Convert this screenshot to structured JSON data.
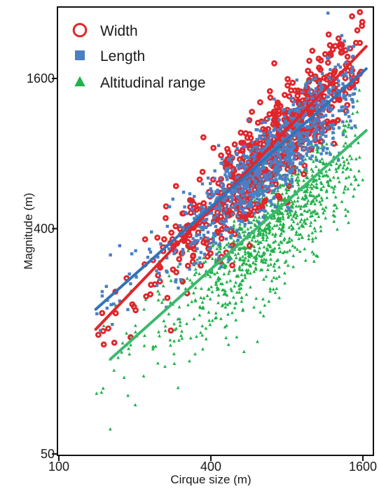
{
  "chart_data": {
    "type": "scatter",
    "xlabel": "Cirque size (m)",
    "ylabel": "Magnitude (m)",
    "x_scale": "log",
    "y_scale": "log",
    "xlim": [
      100,
      1700
    ],
    "ylim": [
      50,
      2650
    ],
    "x_ticks": [
      {
        "value": 100,
        "label": "100"
      },
      {
        "value": 400,
        "label": "400"
      },
      {
        "value": 1600,
        "label": "1600"
      }
    ],
    "y_ticks": [
      {
        "value": 50,
        "label": "50"
      },
      {
        "value": 400,
        "label": "400"
      },
      {
        "value": 1600,
        "label": "1600"
      }
    ],
    "grid": false,
    "legend_position": "top-left",
    "series": [
      {
        "name": "Width",
        "marker": "open-circle",
        "color": "#e0262b",
        "fit_line": {
          "x": [
            140,
            1650
          ],
          "y": [
            158,
            2150
          ]
        },
        "cloud": {
          "x_range": [
            140,
            1620
          ],
          "center_at_1000": 1230,
          "spread_factor": 0.1
        }
      },
      {
        "name": "Length",
        "marker": "square",
        "color": "#4a7fc4",
        "line_color": "#2f73b9",
        "fit_line": {
          "x": [
            140,
            1650
          ],
          "y": [
            190,
            1750
          ]
        },
        "cloud": {
          "x_range": [
            140,
            1500
          ],
          "center_at_1000": 1050,
          "spread_factor": 0.09
        }
      },
      {
        "name": "Altitudinal range",
        "marker": "triangle",
        "color": "#22b14c",
        "line_color": "#3cb96e",
        "fit_line": {
          "x": [
            160,
            1650
          ],
          "y": [
            120,
            990
          ]
        },
        "cloud": {
          "x_range": [
            140,
            1600
          ],
          "center_at_1000": 560,
          "spread_factor": 0.12
        }
      }
    ]
  }
}
